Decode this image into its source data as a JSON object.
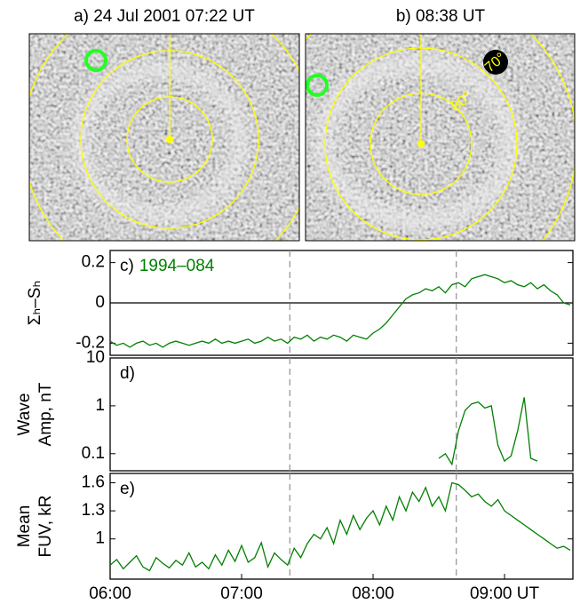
{
  "images": {
    "a": {
      "label": "a) 24 Jul 2001 07:22 UT"
    },
    "b": {
      "label": "b) 08:38 UT",
      "annotations": [
        "70°",
        "80°"
      ]
    }
  },
  "chart_data": [
    {
      "type": "line",
      "panel_label": "c)",
      "ylabel": [
        "Σₕ–Sₕ"
      ],
      "x": [
        6,
        6.05,
        6.1,
        6.15,
        6.2,
        6.25,
        6.3,
        6.35,
        6.4,
        6.45,
        6.5,
        6.55,
        6.6,
        6.65,
        6.7,
        6.75,
        6.8,
        6.85,
        6.9,
        6.95,
        7,
        7.05,
        7.1,
        7.15,
        7.2,
        7.25,
        7.3,
        7.35,
        7.4,
        7.45,
        7.5,
        7.55,
        7.6,
        7.65,
        7.7,
        7.75,
        7.8,
        7.85,
        7.9,
        7.95,
        8,
        8.05,
        8.1,
        8.15,
        8.2,
        8.25,
        8.3,
        8.35,
        8.4,
        8.45,
        8.5,
        8.55,
        8.6,
        8.65,
        8.7,
        8.75,
        8.8,
        8.85,
        8.9,
        8.95,
        9,
        9.05,
        9.1,
        9.15,
        9.2,
        9.25,
        9.3,
        9.35,
        9.4,
        9.45,
        9.5
      ],
      "series": [
        {
          "name": "1994–084",
          "color": "#008000",
          "values": [
            -0.19,
            -0.21,
            -0.2,
            -0.22,
            -0.2,
            -0.19,
            -0.21,
            -0.2,
            -0.22,
            -0.2,
            -0.19,
            -0.2,
            -0.21,
            -0.2,
            -0.19,
            -0.2,
            -0.18,
            -0.2,
            -0.19,
            -0.2,
            -0.19,
            -0.18,
            -0.2,
            -0.19,
            -0.17,
            -0.19,
            -0.18,
            -0.2,
            -0.17,
            -0.18,
            -0.16,
            -0.19,
            -0.17,
            -0.18,
            -0.16,
            -0.17,
            -0.19,
            -0.16,
            -0.17,
            -0.18,
            -0.15,
            -0.13,
            -0.1,
            -0.06,
            -0.02,
            0.02,
            0.04,
            0.05,
            0.07,
            0.06,
            0.08,
            0.05,
            0.09,
            0.1,
            0.08,
            0.12,
            0.13,
            0.14,
            0.13,
            0.12,
            0.1,
            0.11,
            0.09,
            0.08,
            0.1,
            0.07,
            0.09,
            0.06,
            0.04,
            0,
            -0.01
          ]
        }
      ],
      "xlim": [
        6,
        9.52
      ],
      "ylim": [
        -0.26,
        0.26
      ],
      "yticks": [
        -0.2,
        0,
        0.2
      ],
      "zero_line": true,
      "event_lines": [
        7.367,
        8.633
      ]
    },
    {
      "type": "line",
      "ylabel": [
        "Wave",
        "Amp, nT"
      ],
      "panel_label": "d)",
      "log_scale": true,
      "x": [
        6,
        6.05,
        6.1,
        6.15,
        6.2,
        6.25,
        6.3,
        6.35,
        6.4,
        6.45,
        6.5,
        6.55,
        6.6,
        6.65,
        6.7,
        6.75,
        6.8,
        6.85,
        6.9,
        6.95,
        7,
        7.05,
        7.1,
        7.15,
        7.2,
        7.25,
        7.3,
        7.35,
        7.4,
        7.45,
        7.5,
        7.55,
        7.6,
        7.65,
        7.7,
        7.75,
        7.8,
        7.85,
        7.9,
        7.95,
        8,
        8.05,
        8.1,
        8.15,
        8.2,
        8.25,
        8.3,
        8.35,
        8.4,
        8.45,
        8.5,
        8.55,
        8.6,
        8.65,
        8.7,
        8.75,
        8.8,
        8.85,
        8.9,
        8.95,
        9,
        9.05,
        9.1,
        9.15,
        9.2,
        9.25,
        9.3,
        9.35,
        9.4,
        9.45,
        9.5
      ],
      "series": [
        {
          "color": "#008000",
          "values": [
            null,
            null,
            null,
            null,
            null,
            null,
            null,
            null,
            null,
            null,
            null,
            null,
            null,
            null,
            null,
            null,
            null,
            null,
            null,
            null,
            null,
            null,
            null,
            null,
            null,
            null,
            null,
            null,
            null,
            null,
            null,
            null,
            null,
            null,
            null,
            null,
            null,
            null,
            null,
            null,
            null,
            null,
            null,
            null,
            null,
            null,
            null,
            null,
            null,
            null,
            0.08,
            0.1,
            0.06,
            0.3,
            0.8,
            1.1,
            1.2,
            0.9,
            1.0,
            0.15,
            0.07,
            0.09,
            0.3,
            1.5,
            0.08,
            0.07,
            null,
            null,
            null,
            null,
            null
          ]
        }
      ],
      "xlim": [
        6,
        9.52
      ],
      "ylim": [
        0.044,
        10
      ],
      "yticks": [
        0.1,
        1,
        10
      ],
      "event_lines": [
        7.367,
        8.633
      ]
    },
    {
      "type": "line",
      "ylabel": [
        "Mean",
        "FUV, kR"
      ],
      "panel_label": "e)",
      "x": [
        6,
        6.05,
        6.1,
        6.15,
        6.2,
        6.25,
        6.3,
        6.35,
        6.4,
        6.45,
        6.5,
        6.55,
        6.6,
        6.65,
        6.7,
        6.75,
        6.8,
        6.85,
        6.9,
        6.95,
        7,
        7.05,
        7.1,
        7.15,
        7.2,
        7.25,
        7.3,
        7.35,
        7.4,
        7.45,
        7.5,
        7.55,
        7.6,
        7.65,
        7.7,
        7.75,
        7.8,
        7.85,
        7.9,
        7.95,
        8,
        8.05,
        8.1,
        8.15,
        8.2,
        8.25,
        8.3,
        8.35,
        8.4,
        8.45,
        8.5,
        8.55,
        8.6,
        8.65,
        8.7,
        8.75,
        8.8,
        8.85,
        8.9,
        8.95,
        9,
        9.05,
        9.1,
        9.15,
        9.2,
        9.25,
        9.3,
        9.35,
        9.4,
        9.45,
        9.5
      ],
      "series": [
        {
          "color": "#008000",
          "values": [
            0.72,
            0.78,
            0.68,
            0.75,
            0.82,
            0.7,
            0.66,
            0.8,
            0.74,
            0.69,
            0.77,
            0.72,
            0.85,
            0.7,
            0.75,
            0.68,
            0.83,
            0.72,
            0.88,
            0.76,
            0.93,
            0.75,
            0.8,
            0.96,
            0.7,
            0.85,
            0.78,
            0.72,
            0.9,
            0.8,
            0.95,
            1.05,
            1.0,
            1.12,
            0.95,
            1.2,
            1.05,
            1.25,
            1.1,
            1.22,
            1.3,
            1.15,
            1.35,
            1.2,
            1.45,
            1.3,
            1.5,
            1.4,
            1.55,
            1.35,
            1.45,
            1.3,
            1.6,
            1.58,
            1.52,
            1.45,
            1.48,
            1.4,
            1.35,
            1.42,
            1.3,
            1.25,
            1.2,
            1.15,
            1.1,
            1.05,
            1.0,
            0.95,
            0.9,
            0.92,
            0.88
          ]
        }
      ],
      "xlim": [
        6,
        9.52
      ],
      "ylim": [
        0.57,
        1.7
      ],
      "yticks": [
        1,
        1.3,
        1.6
      ],
      "event_lines": [
        7.367,
        8.633
      ],
      "xticks": [
        {
          "value": 6,
          "label": "06:00"
        },
        {
          "value": 7,
          "label": "07:00"
        },
        {
          "value": 8,
          "label": "08:00"
        },
        {
          "value": 9,
          "label": "09:00 UT"
        }
      ]
    }
  ]
}
